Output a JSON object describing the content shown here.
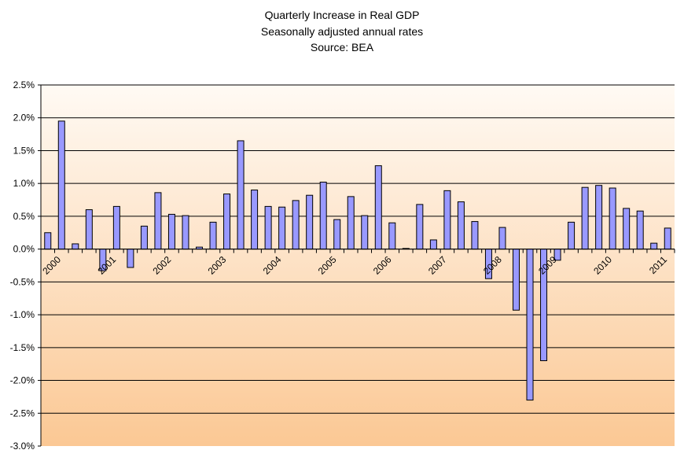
{
  "chart_data": {
    "type": "bar",
    "title": [
      "Quarterly Increase in Real GDP",
      "Seasonally adjusted annual rates",
      "Source: BEA"
    ],
    "xlabel": "",
    "ylabel": "",
    "ylim": [
      -3.0,
      2.5
    ],
    "yticks": [
      2.5,
      2.0,
      1.5,
      1.0,
      0.5,
      0.0,
      -0.5,
      -1.0,
      -1.5,
      -2.0,
      -2.5,
      -3.0
    ],
    "ytick_labels": [
      "2.5%",
      "2.0%",
      "1.5%",
      "1.0%",
      "0.5%",
      "0.0%",
      "-0.5%",
      "-1.0%",
      "-1.5%",
      "-2.0%",
      "-2.5%",
      "-3.0%"
    ],
    "year_labels": [
      "2000",
      "2001",
      "2002",
      "2003",
      "2004",
      "2005",
      "2006",
      "2007",
      "2008",
      "2009",
      "2010",
      "2011"
    ],
    "quarters_per_year": 4,
    "values": [
      0.25,
      1.95,
      0.08,
      0.6,
      -0.33,
      0.65,
      -0.28,
      0.35,
      0.86,
      0.53,
      0.51,
      0.03,
      0.41,
      0.84,
      1.65,
      0.9,
      0.65,
      0.64,
      0.74,
      0.82,
      1.02,
      0.45,
      0.8,
      0.51,
      1.27,
      0.4,
      0.01,
      0.68,
      0.14,
      0.89,
      0.72,
      0.42,
      -0.45,
      0.33,
      -0.93,
      -2.3,
      -1.7,
      -0.17,
      0.41,
      0.94,
      0.97,
      0.93,
      0.62,
      0.58,
      0.09,
      0.32
    ],
    "grid": true,
    "legend": "none",
    "colors": {
      "bar": "#9999ff",
      "bg_top": "#fffaf4",
      "bg_bottom": "#fbc894"
    }
  }
}
